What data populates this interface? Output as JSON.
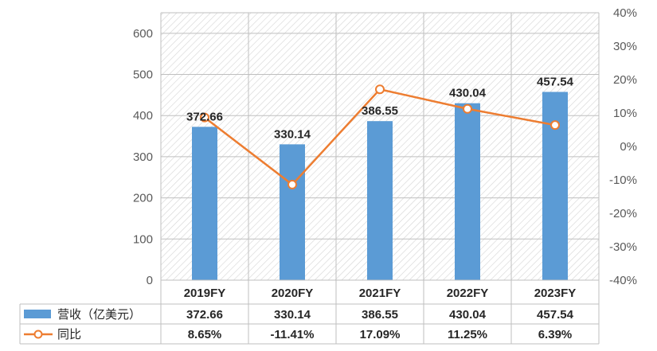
{
  "chart_data": {
    "type": "bar",
    "categories": [
      "2019FY",
      "2020FY",
      "2021FY",
      "2022FY",
      "2023FY"
    ],
    "series": [
      {
        "name": "营收（亿美元）",
        "type": "bar",
        "axis": "left",
        "values": [
          372.66,
          330.14,
          386.55,
          430.04,
          457.54
        ],
        "labels": [
          "372.66",
          "330.14",
          "386.55",
          "430.04",
          "457.54"
        ],
        "color": "#5B9BD5"
      },
      {
        "name": "同比",
        "type": "line",
        "axis": "right",
        "values": [
          8.65,
          -11.41,
          17.09,
          11.25,
          6.39
        ],
        "labels": [
          "8.65%",
          "-11.41%",
          "17.09%",
          "11.25%",
          "6.39%"
        ],
        "color": "#ED7D31"
      }
    ],
    "y_left": {
      "ylim": [
        0,
        650
      ],
      "ticks": [
        "0",
        "100",
        "200",
        "300",
        "400",
        "500",
        "600"
      ],
      "tick_values": [
        0,
        100,
        200,
        300,
        400,
        500,
        600
      ]
    },
    "y_right": {
      "ylim": [
        -40,
        40
      ],
      "ticks": [
        "-40%",
        "-30%",
        "-20%",
        "-10%",
        "0%",
        "10%",
        "20%",
        "30%",
        "40%"
      ],
      "tick_values": [
        -40,
        -30,
        -20,
        -10,
        0,
        10,
        20,
        30,
        40
      ]
    },
    "grid": true,
    "data_table": true,
    "legend": "data-table-left"
  }
}
